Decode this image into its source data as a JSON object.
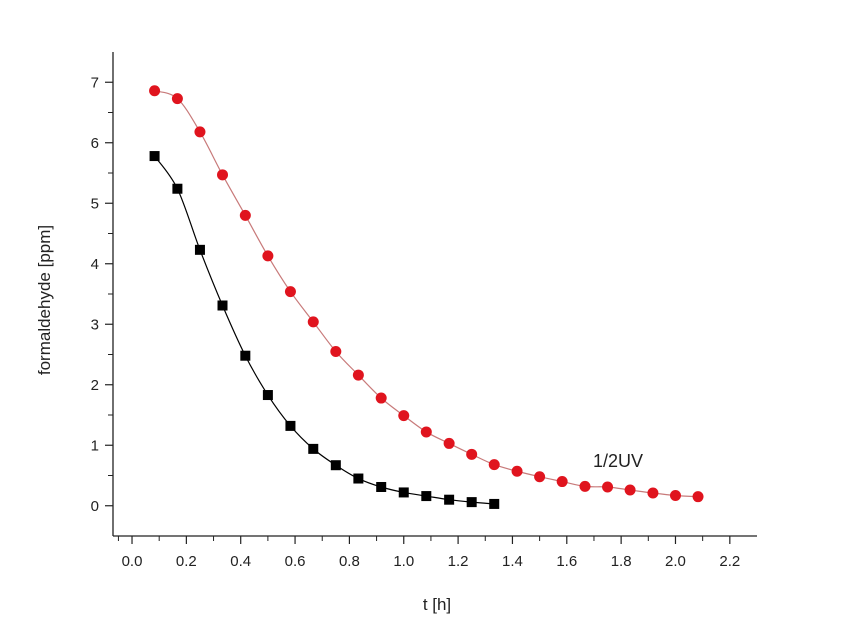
{
  "chart_data": {
    "type": "scatter",
    "xlabel": "t [h]",
    "ylabel": "formaldehyde [ppm]",
    "xlim": [
      -0.07,
      2.3
    ],
    "ylim": [
      -0.5,
      7.5
    ],
    "xticks": [
      "0.0",
      "0.2",
      "0.4",
      "0.6",
      "0.8",
      "1.0",
      "1.2",
      "1.4",
      "1.6",
      "1.8",
      "2.0",
      "2.2"
    ],
    "yticks": [
      "0",
      "1",
      "2",
      "3",
      "4",
      "5",
      "6",
      "7"
    ],
    "grid": false,
    "annotation": "1/2UV",
    "series": [
      {
        "color": "#000000",
        "line_color": "#000000",
        "marker": "square",
        "x": [
          0.083,
          0.167,
          0.25,
          0.333,
          0.417,
          0.5,
          0.583,
          0.667,
          0.75,
          0.833,
          0.917,
          1.0,
          1.083,
          1.167,
          1.25,
          1.333
        ],
        "y": [
          5.78,
          5.24,
          4.23,
          3.31,
          2.48,
          1.83,
          1.32,
          0.94,
          0.67,
          0.45,
          0.31,
          0.22,
          0.16,
          0.1,
          0.06,
          0.03
        ]
      },
      {
        "color": "#e0141e",
        "line_color": "#c87a7a",
        "marker": "circle",
        "x": [
          0.083,
          0.167,
          0.25,
          0.333,
          0.417,
          0.5,
          0.583,
          0.667,
          0.75,
          0.833,
          0.917,
          1.0,
          1.083,
          1.167,
          1.25,
          1.333,
          1.417,
          1.5,
          1.583,
          1.667,
          1.75,
          1.833,
          1.917,
          2.0,
          2.083
        ],
        "y": [
          6.86,
          6.73,
          6.18,
          5.47,
          4.8,
          4.13,
          3.54,
          3.04,
          2.55,
          2.16,
          1.78,
          1.49,
          1.22,
          1.03,
          0.85,
          0.68,
          0.57,
          0.48,
          0.4,
          0.32,
          0.31,
          0.26,
          0.21,
          0.17,
          0.15
        ]
      }
    ]
  }
}
